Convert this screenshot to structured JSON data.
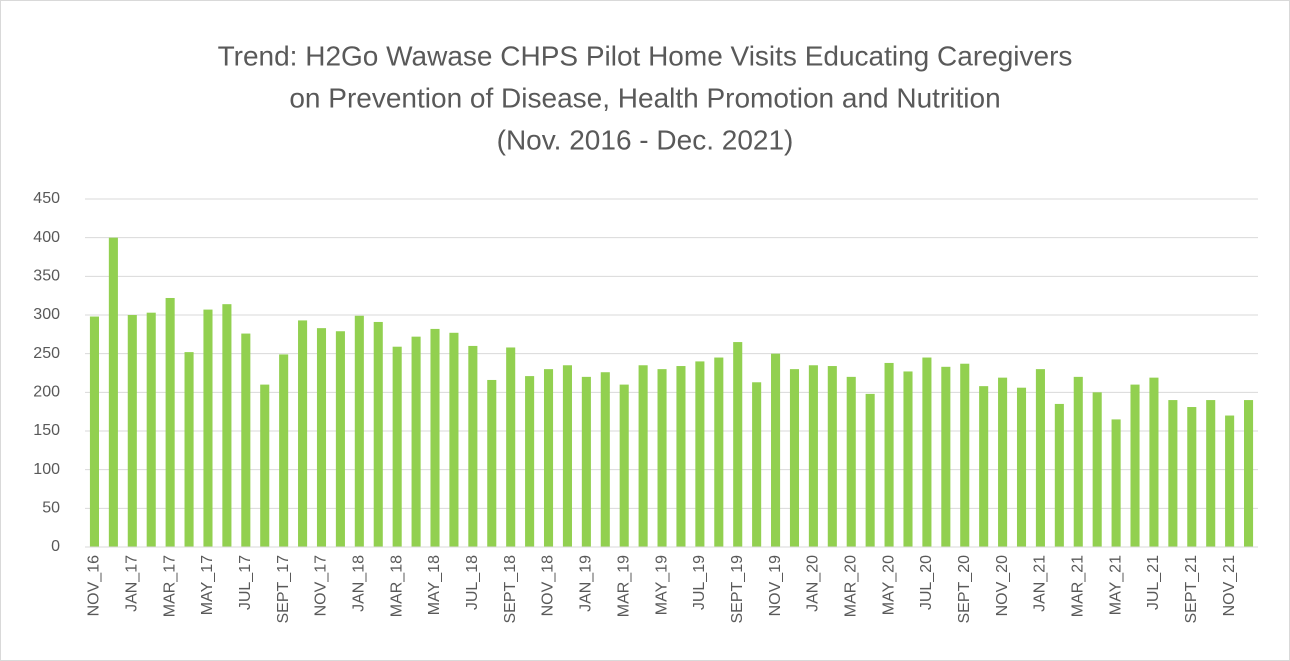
{
  "chart_data": {
    "type": "bar",
    "title": [
      "Trend: H2Go Wawase CHPS Pilot Home Visits Educating Caregivers",
      "on Prevention of Disease, Health Promotion and Nutrition",
      "(Nov. 2016 - Dec. 2021)"
    ],
    "categories": [
      "NOV_16",
      null,
      "JAN_17",
      null,
      "MAR_17",
      null,
      "MAY_17",
      null,
      "JUL_17",
      null,
      "SEPT_17",
      null,
      "NOV_17",
      null,
      "JAN_18",
      null,
      "MAR_18",
      null,
      "MAY_18",
      null,
      "JUL_18",
      null,
      "SEPT_18",
      null,
      "NOV_18",
      null,
      "JAN_19",
      null,
      "MAR_19",
      null,
      "MAY_19",
      null,
      "JUL_19",
      null,
      "SEPT_19",
      null,
      "NOV_19",
      null,
      "JAN_20",
      null,
      "MAR_20",
      null,
      "MAY_20",
      null,
      "JUL_20",
      null,
      "SEPT_20",
      null,
      "NOV_20",
      null,
      "JAN_21",
      null,
      "MAR_21",
      null,
      "MAY_21",
      null,
      "JUL_21",
      null,
      "SEPT_21",
      null,
      "NOV_21",
      null
    ],
    "values": [
      298,
      400,
      300,
      303,
      322,
      252,
      307,
      314,
      276,
      210,
      249,
      293,
      283,
      279,
      299,
      291,
      259,
      272,
      282,
      277,
      260,
      216,
      258,
      221,
      230,
      235,
      220,
      226,
      210,
      235,
      230,
      234,
      240,
      245,
      265,
      213,
      250,
      230,
      235,
      234,
      220,
      198,
      238,
      227,
      245,
      233,
      237,
      208,
      219,
      206,
      230,
      185,
      220,
      200,
      165,
      210,
      219,
      190,
      181,
      190,
      170,
      190
    ],
    "color": "#92d050",
    "ylim": [
      0,
      450
    ],
    "yticks": [
      0,
      50,
      100,
      150,
      200,
      250,
      300,
      350,
      400,
      450
    ],
    "grid": true
  }
}
